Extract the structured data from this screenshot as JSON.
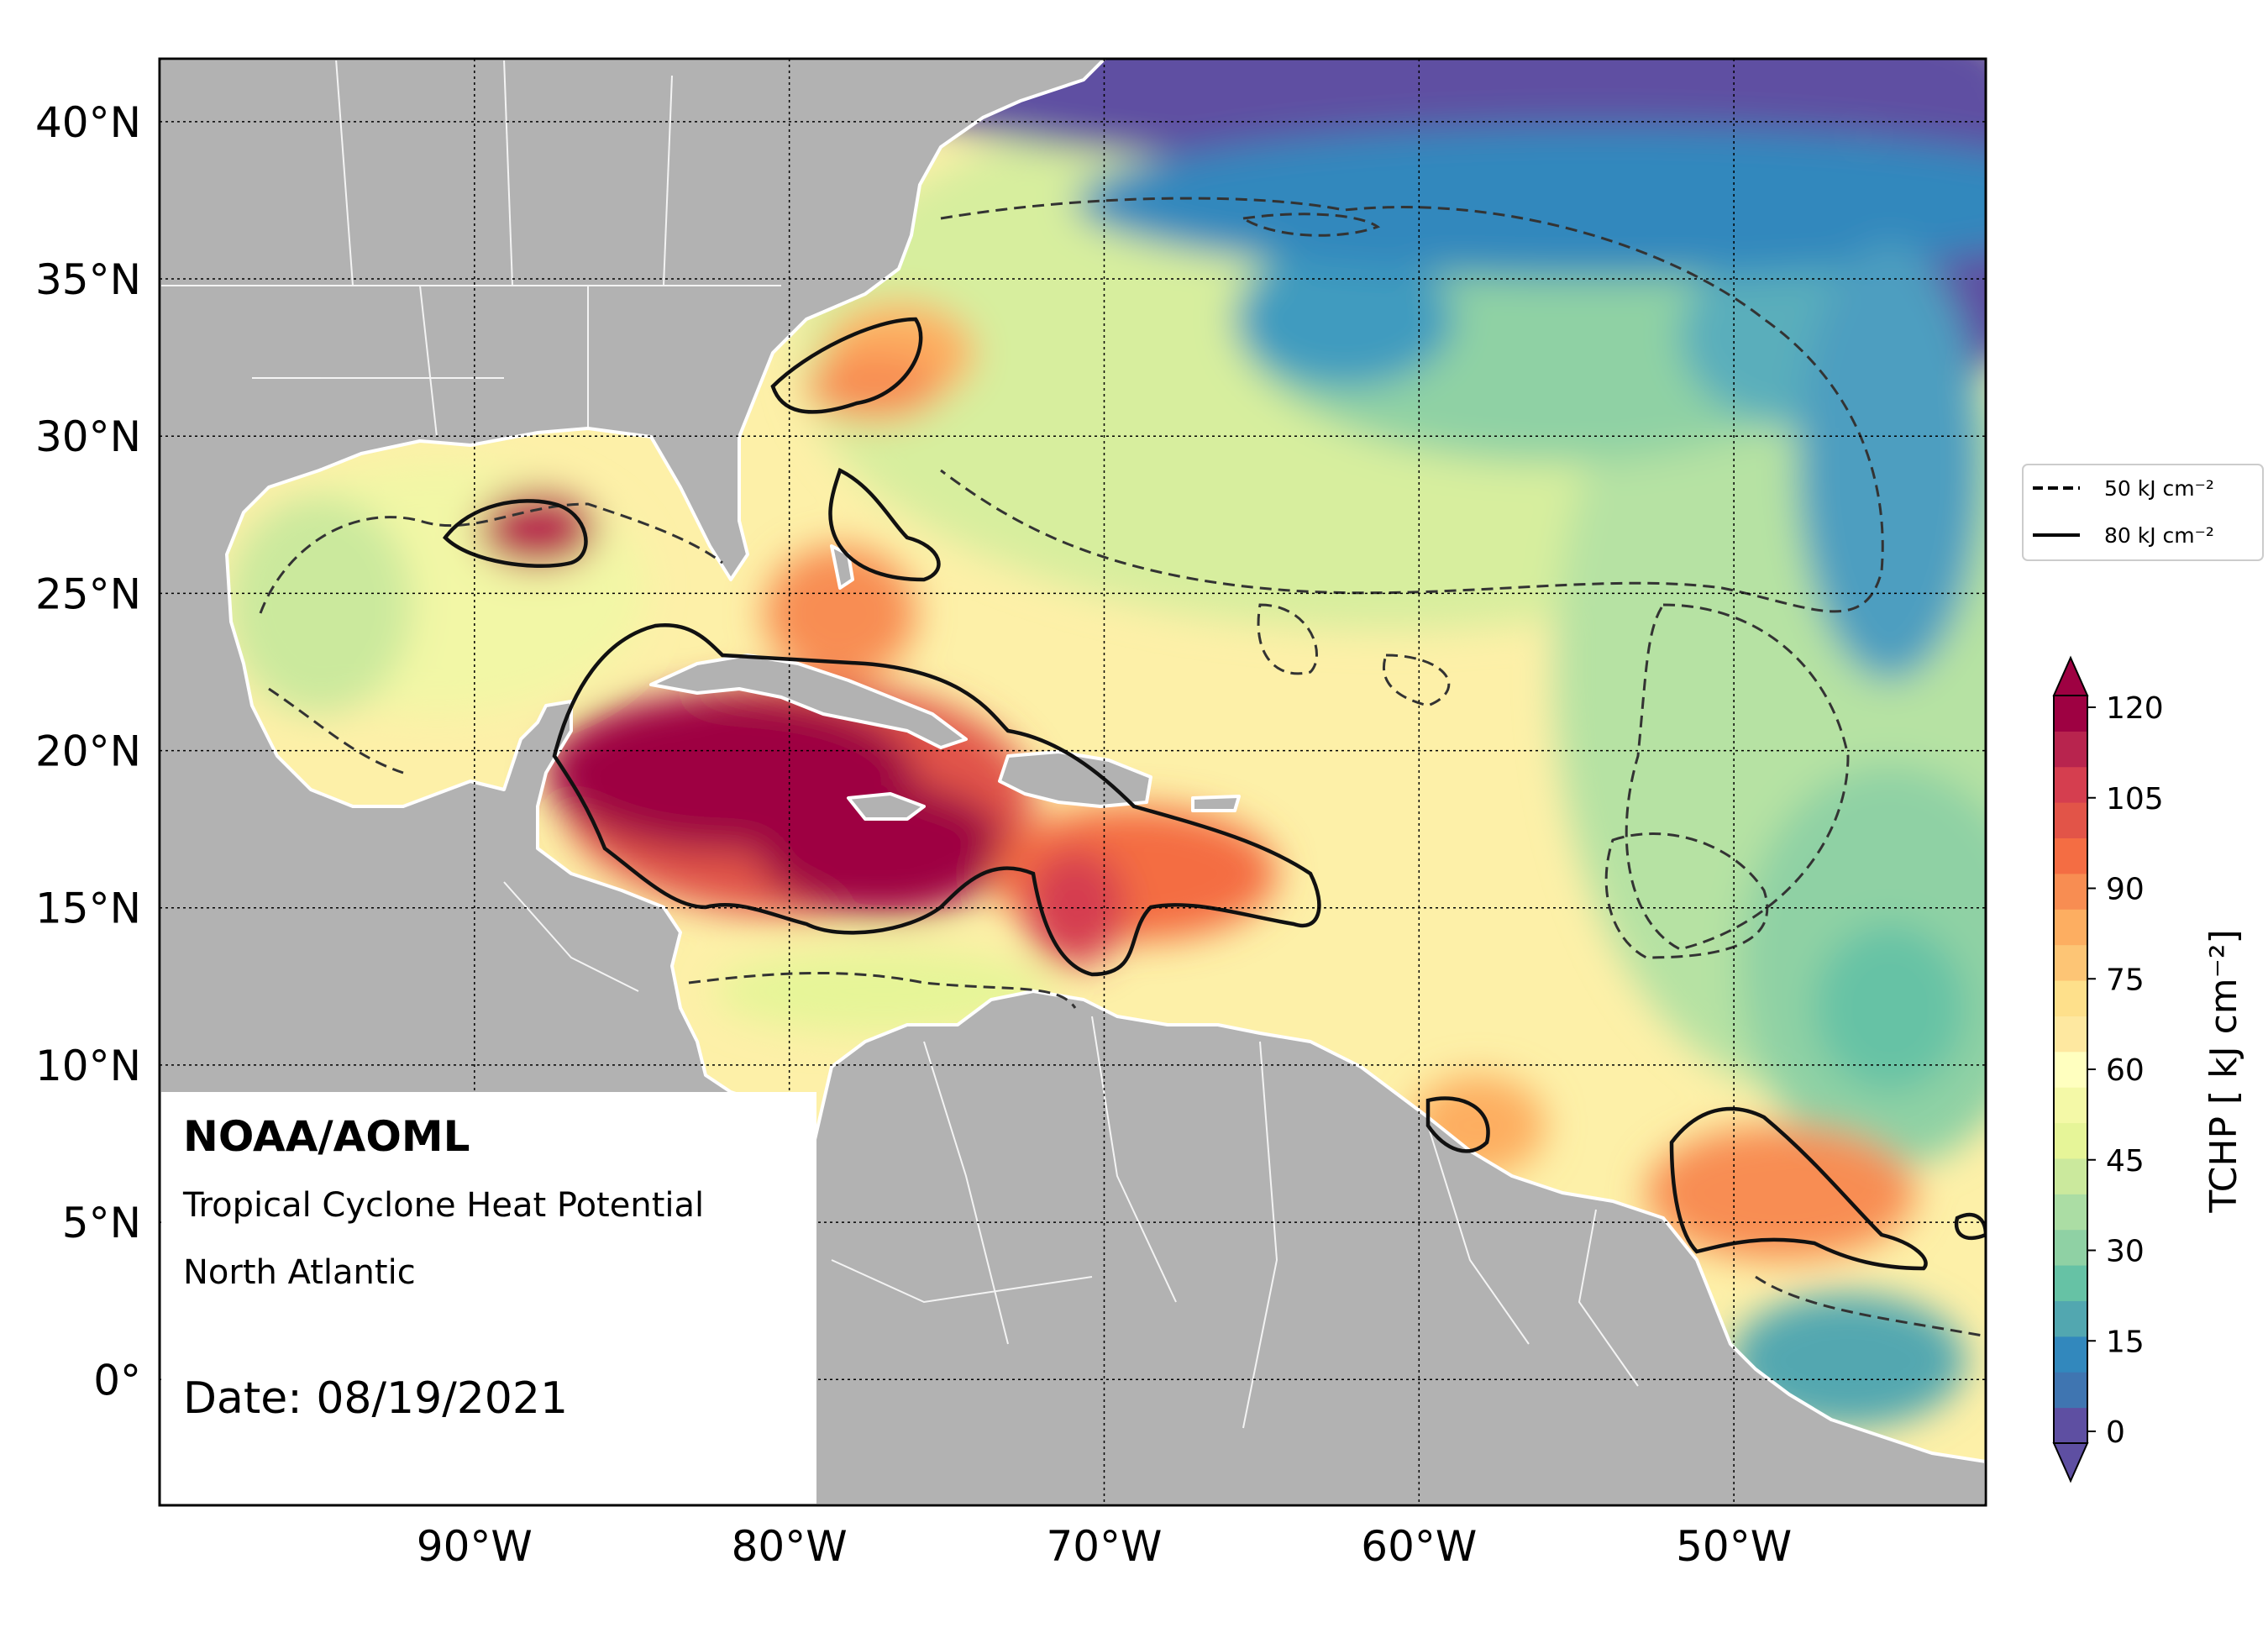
{
  "map": {
    "institution": "NOAA/AOML",
    "product": "Tropical Cyclone Heat Potential",
    "region": "North Atlantic",
    "date_text": "Date: 08/19/2021",
    "lon_ticks": [
      {
        "value": -90,
        "label": "90°W"
      },
      {
        "value": -80,
        "label": "80°W"
      },
      {
        "value": -70,
        "label": "70°W"
      },
      {
        "value": -60,
        "label": "60°W"
      },
      {
        "value": -50,
        "label": "50°W"
      }
    ],
    "lat_ticks": [
      {
        "value": 40,
        "label": "40°N"
      },
      {
        "value": 35,
        "label": "35°N"
      },
      {
        "value": 30,
        "label": "30°N"
      },
      {
        "value": 25,
        "label": "25°N"
      },
      {
        "value": 20,
        "label": "20°N"
      },
      {
        "value": 15,
        "label": "15°N"
      },
      {
        "value": 10,
        "label": "10°N"
      },
      {
        "value": 5,
        "label": "5°N"
      },
      {
        "value": 0,
        "label": "0°"
      }
    ],
    "extent": {
      "lon_min": -100,
      "lon_max": -42,
      "lat_min": -4,
      "lat_max": 42
    },
    "land_color": "#b2b2b2",
    "border_color": "#ffffff"
  },
  "legend": {
    "items": [
      {
        "style": "dashed",
        "label": "50 kJ cm⁻²"
      },
      {
        "style": "solid",
        "label": "80 kJ cm⁻²"
      }
    ]
  },
  "colorbar": {
    "label": "TCHP [ kJ cm⁻²]",
    "ticks": [
      "0",
      "15",
      "30",
      "45",
      "60",
      "75",
      "90",
      "105",
      "120"
    ],
    "range": [
      0,
      120
    ],
    "colors": [
      "#5e4fa2",
      "#3f75b1",
      "#3288bd",
      "#52a7b0",
      "#66c2a5",
      "#8fd1a4",
      "#abdda4",
      "#cbe99d",
      "#e6f598",
      "#f4f9a7",
      "#ffffbf",
      "#fee8a0",
      "#fee08b",
      "#fdc575",
      "#fdae61",
      "#f88d52",
      "#f46d43",
      "#e25448",
      "#d53e4f",
      "#b8244e",
      "#9e0142"
    ]
  }
}
